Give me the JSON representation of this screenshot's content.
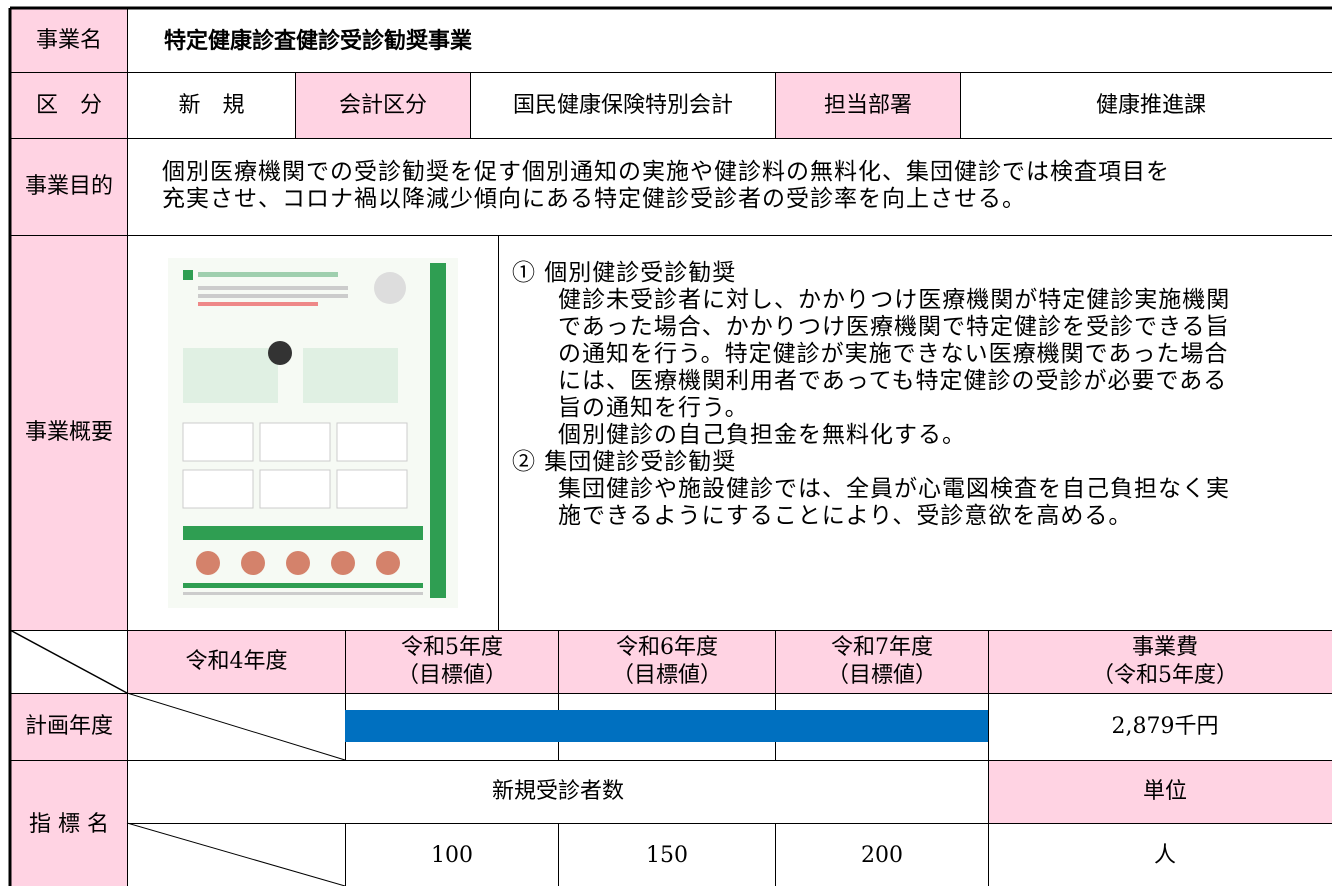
{
  "business_name": {
    "label": "事業名",
    "value": "特定健康診査健診受診勧奨事業"
  },
  "classification": {
    "label": "区　分",
    "value": "新　規"
  },
  "accounting": {
    "label": "会計区分",
    "value": "国民健康保険特別会計"
  },
  "department": {
    "label": "担当部署",
    "value": "健康推進課"
  },
  "purpose": {
    "label": "事業目的",
    "lines": [
      "個別医療機関での受診勧奨を促す個別通知の実施や健診料の無料化、集団健診では検査項目を",
      "充実させ、コロナ禍以降減少傾向にある特定健診受診者の受診率を向上させる。"
    ]
  },
  "overview": {
    "label": "事業概要",
    "items": [
      {
        "heading": "①  個別健診受診勧奨",
        "lines": [
          "健診未受診者に対し、かかりつけ医療機関が特定健診実施機関",
          "であった場合、かかりつけ医療機関で特定健診を受診できる旨",
          "の通知を行う。特定健診が実施できない医療機関であった場合",
          "には、医療機関利用者であっても特定健診の受診が必要である",
          "旨の通知を行う。",
          "個別健診の自己負担金を無料化する。"
        ]
      },
      {
        "heading": "②  集団健診受診勧奨",
        "lines": [
          "集団健診や施設健診では、全員が心電図検査を自己負担なく実",
          "施できるようにすることにより、受診意欲を高める。"
        ]
      }
    ]
  },
  "plan": {
    "years": [
      [
        "令和4年度"
      ],
      [
        "令和5年度",
        "（目標値）"
      ],
      [
        "令和6年度",
        "（目標値）"
      ],
      [
        "令和7年度",
        "（目標値）"
      ]
    ],
    "cost_header": [
      "事業費",
      "（令和5年度）"
    ],
    "row_label": "計画年度",
    "cost": "2,879千円"
  },
  "indicator": {
    "label": "指 標 名",
    "name": "新規受診者数",
    "unit_header": "単位",
    "targets": [
      "100",
      "150",
      "200"
    ],
    "unit": "人"
  }
}
